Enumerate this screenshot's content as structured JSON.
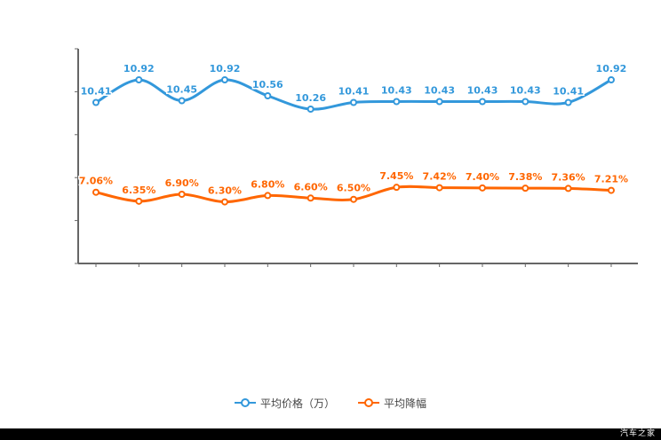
{
  "footer": {
    "brand": "汽车之家"
  },
  "chart_data": {
    "type": "line",
    "title": "",
    "xlabel": "",
    "ylabel": "",
    "grid": false,
    "legend_position": "bottom",
    "series": [
      {
        "name": "平均价格（万）",
        "color": "#3398db",
        "y_domain": [
          10.2,
          11.0
        ],
        "values": [
          10.41,
          10.92,
          10.45,
          10.92,
          10.56,
          10.26,
          10.41,
          10.43,
          10.43,
          10.43,
          10.43,
          10.41,
          10.92
        ],
        "labels": [
          "10.41",
          "10.92",
          "10.45",
          "10.92",
          "10.56",
          "10.26",
          "10.41",
          "10.43",
          "10.43",
          "10.43",
          "10.43",
          "10.41",
          "10.92"
        ]
      },
      {
        "name": "平均降幅",
        "color": "#ff6600",
        "y_domain": [
          6.2,
          7.6
        ],
        "values": [
          7.06,
          6.35,
          6.9,
          6.3,
          6.8,
          6.6,
          6.5,
          7.45,
          7.42,
          7.4,
          7.38,
          7.36,
          7.21
        ],
        "labels": [
          "7.06%",
          "6.35%",
          "6.90%",
          "6.30%",
          "6.80%",
          "6.60%",
          "6.50%",
          "7.45%",
          "7.42%",
          "7.40%",
          "7.38%",
          "7.36%",
          "7.21%"
        ]
      }
    ]
  }
}
